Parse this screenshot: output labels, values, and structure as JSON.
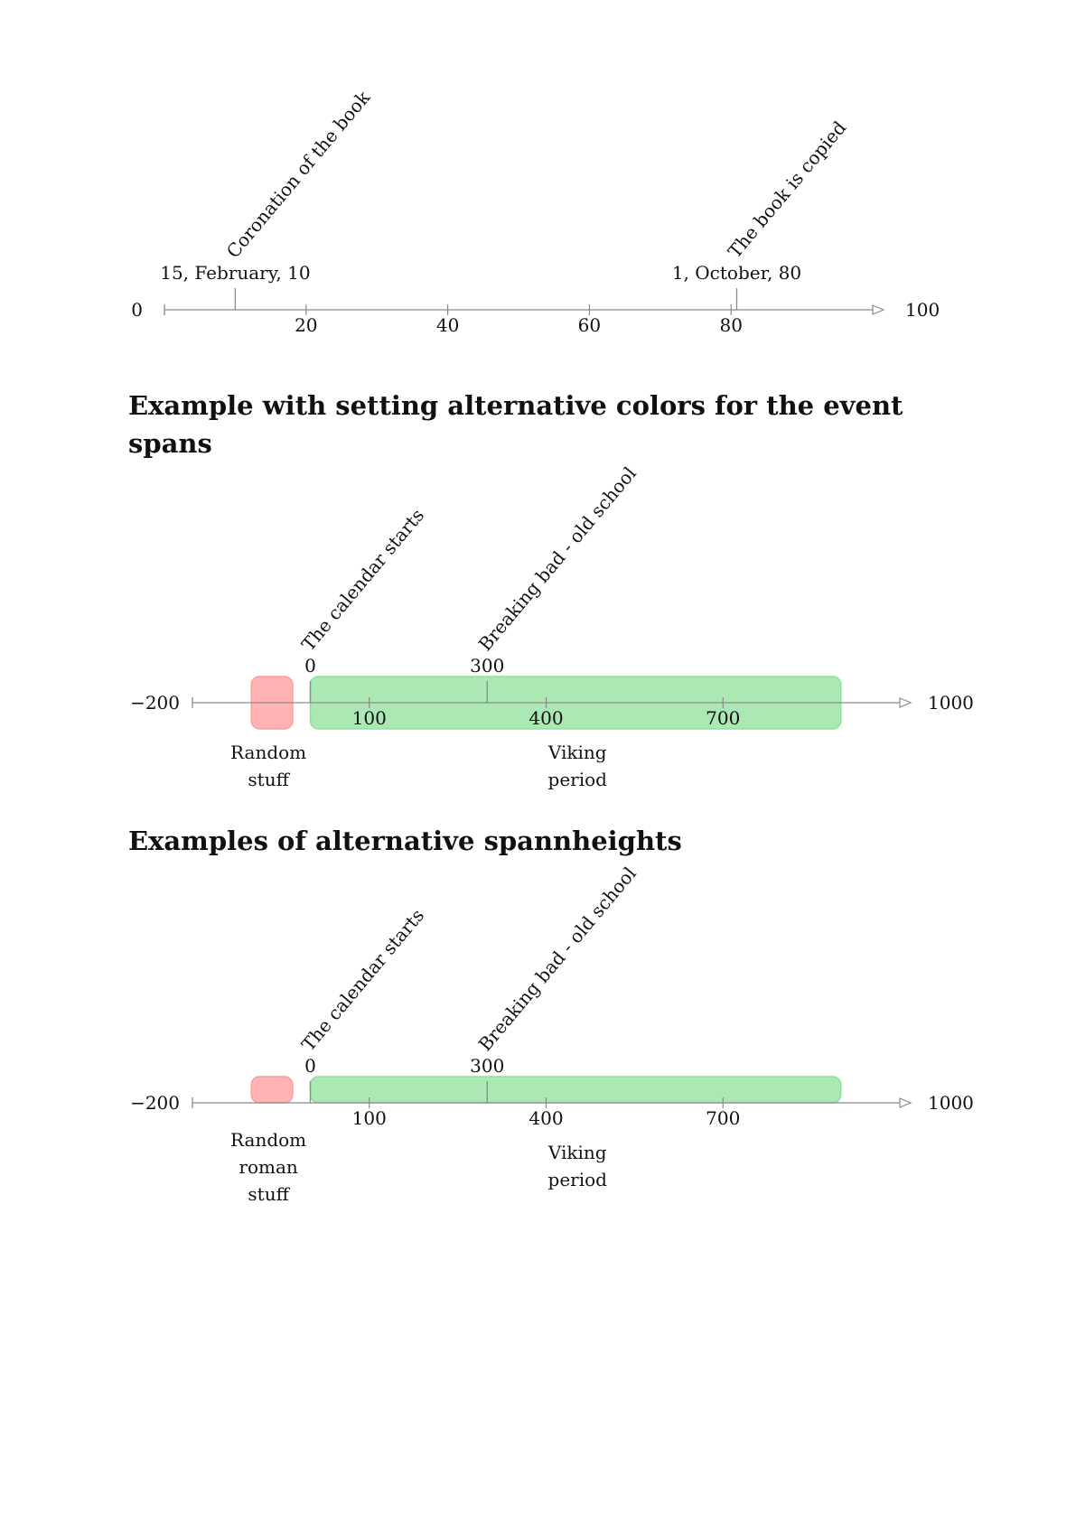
{
  "timelines": [
    {
      "id": "t1",
      "axis": {
        "min": 0,
        "max": 100,
        "min_label": "0",
        "max_label": "100"
      },
      "ticks": [
        {
          "v": 20,
          "label": "20"
        },
        {
          "v": 40,
          "label": "40"
        },
        {
          "v": 60,
          "label": "60"
        },
        {
          "v": 80,
          "label": "80"
        }
      ],
      "events": [
        {
          "v": 10,
          "date": "15, February, 10",
          "text": "Coronation of the book"
        },
        {
          "v": 80.8,
          "date": "1, October, 80",
          "text": "The book is copied"
        }
      ],
      "spans": []
    },
    {
      "id": "t2",
      "axis": {
        "min": -200,
        "max": 1000,
        "min_label": "−200",
        "max_label": "1000"
      },
      "ticks": [
        {
          "v": 100,
          "label": "100"
        },
        {
          "v": 400,
          "label": "400"
        },
        {
          "v": 700,
          "label": "700"
        }
      ],
      "events": [
        {
          "v": 0,
          "date": "0",
          "text": "The calendar starts"
        },
        {
          "v": 300,
          "date": "300",
          "text": "Breaking bad -  old school"
        }
      ],
      "spans": [
        {
          "from": -100,
          "to": -30,
          "label": [
            "Random",
            "stuff"
          ],
          "color": "#ff9a9a",
          "placement": "centered"
        },
        {
          "from": 0,
          "to": 900,
          "label": [
            "Viking",
            "period"
          ],
          "color": "#8fe09a",
          "placement": "centered"
        }
      ]
    },
    {
      "id": "t3",
      "axis": {
        "min": -200,
        "max": 1000,
        "min_label": "−200",
        "max_label": "1000"
      },
      "ticks": [
        {
          "v": 100,
          "label": "100"
        },
        {
          "v": 400,
          "label": "400"
        },
        {
          "v": 700,
          "label": "700"
        }
      ],
      "events": [
        {
          "v": 0,
          "date": "0",
          "text": "The calendar starts"
        },
        {
          "v": 300,
          "date": "300",
          "text": "Breaking bad -  old school"
        }
      ],
      "spans": [
        {
          "from": -100,
          "to": -30,
          "label": [
            "Random",
            "roman",
            "stuff"
          ],
          "color": "#ff9a9a",
          "placement": "above-axis"
        },
        {
          "from": 0,
          "to": 900,
          "label": [
            "Viking",
            "period"
          ],
          "color": "#8fe09a",
          "placement": "above-axis"
        }
      ]
    }
  ],
  "headings": {
    "colors": "Example with setting alternative colors for the event spans",
    "heights": "Examples of alternative spannheights"
  }
}
